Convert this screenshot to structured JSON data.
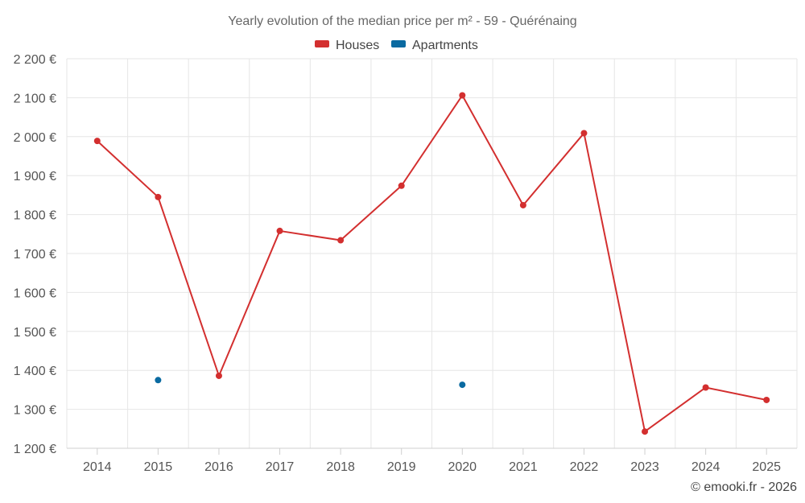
{
  "chart_data": {
    "type": "line",
    "title": "Yearly evolution of the median price per m² - 59 - Quérénaing",
    "xlabel": "",
    "ylabel": "",
    "categories": [
      "2014",
      "2015",
      "2016",
      "2017",
      "2018",
      "2019",
      "2020",
      "2021",
      "2022",
      "2023",
      "2024",
      "2025"
    ],
    "ylim": [
      1200,
      2200
    ],
    "y_ticks": [
      1200,
      1300,
      1400,
      1500,
      1600,
      1700,
      1800,
      1900,
      2000,
      2100,
      2200
    ],
    "y_tick_labels": [
      "1 200 €",
      "1 300 €",
      "1 400 €",
      "1 500 €",
      "1 600 €",
      "1 700 €",
      "1 800 €",
      "1 900 €",
      "2 000 €",
      "2 100 €",
      "2 200 €"
    ],
    "grid": true,
    "legend_position": "top-center",
    "series": [
      {
        "name": "Houses",
        "color": "#d32f2f",
        "values": [
          1989,
          1845,
          1386,
          1758,
          1734,
          1874,
          2106,
          1824,
          2009,
          1243,
          1356,
          1324
        ]
      },
      {
        "name": "Apartments",
        "color": "#0a6aa1",
        "values": [
          null,
          1375,
          null,
          null,
          null,
          null,
          1363,
          null,
          null,
          null,
          null,
          null
        ]
      }
    ]
  },
  "credit": "© emooki.fr - 2026"
}
